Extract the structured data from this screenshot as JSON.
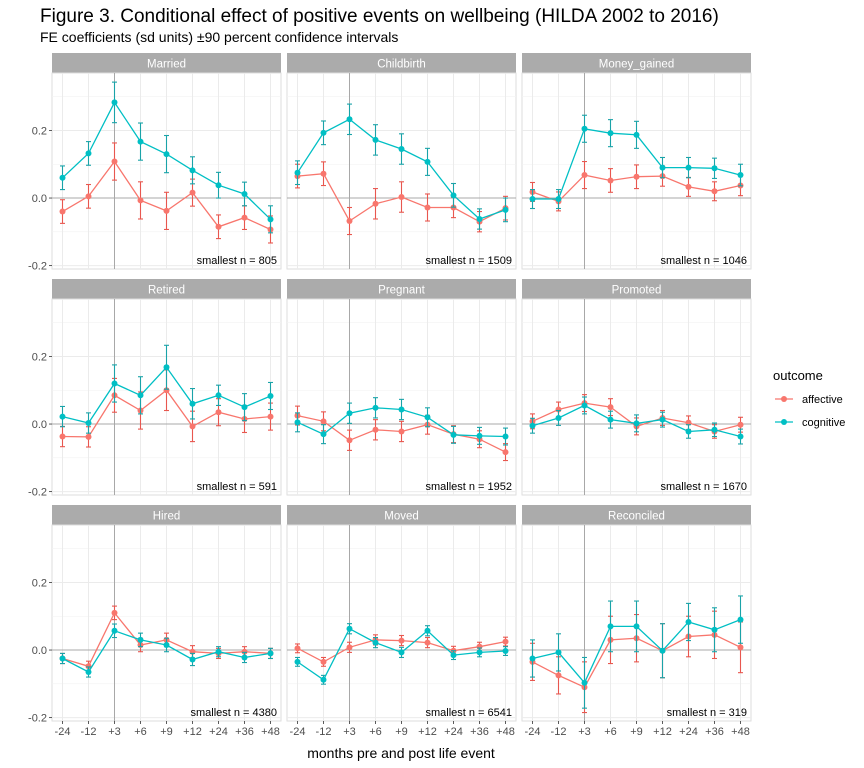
{
  "title": "Figure 3. Conditional effect of positive events on wellbeing (HILDA 2002 to 2016)",
  "subtitle": "FE coefficients (sd units) ±90 percent confidence intervals",
  "colors": {
    "affective": "#F8766D",
    "cognitive": "#00BFC4",
    "strip": "#ABABAB",
    "ci_affective": "#E8574F",
    "ci_cognitive": "#1AA3A8"
  },
  "chart_data": {
    "type": "line",
    "facets": "3x3 small multiples",
    "categories": [
      "-24",
      "-12",
      "+3",
      "+6",
      "+9",
      "+12",
      "+24",
      "+36",
      "+48"
    ],
    "event_marker": "+3",
    "xlabel": "months pre and post life event",
    "ylabel": "",
    "yticks": [
      -0.2,
      0.0,
      0.2
    ],
    "ytick_labels": [
      "-0.2",
      "0.0",
      "0.2"
    ],
    "ylim": [
      -0.21,
      0.37
    ],
    "grid": true,
    "legend": {
      "title": "outcome",
      "position": "right",
      "entries": [
        "affective",
        "cognitive"
      ]
    },
    "panels": [
      {
        "name": "Married",
        "n_label": "smallest n = 805",
        "series": [
          {
            "name": "affective",
            "values": [
              -0.04,
              0.005,
              0.108,
              -0.007,
              -0.038,
              0.016,
              -0.085,
              -0.058,
              -0.093
            ],
            "ci": [
              0.035,
              0.035,
              0.055,
              0.055,
              0.055,
              0.04,
              0.035,
              0.035,
              0.04
            ]
          },
          {
            "name": "cognitive",
            "values": [
              0.06,
              0.132,
              0.283,
              0.167,
              0.13,
              0.082,
              0.038,
              0.012,
              -0.063
            ],
            "ci": [
              0.035,
              0.035,
              0.06,
              0.055,
              0.055,
              0.04,
              0.038,
              0.035,
              0.04
            ]
          }
        ]
      },
      {
        "name": "Childbirth",
        "n_label": "smallest n = 1509",
        "series": [
          {
            "name": "affective",
            "values": [
              0.065,
              0.072,
              -0.068,
              -0.017,
              0.003,
              -0.028,
              -0.028,
              -0.07,
              -0.03
            ],
            "ci": [
              0.035,
              0.035,
              0.04,
              0.045,
              0.045,
              0.04,
              0.03,
              0.03,
              0.035
            ]
          },
          {
            "name": "cognitive",
            "values": [
              0.075,
              0.193,
              0.233,
              0.172,
              0.145,
              0.107,
              0.008,
              -0.062,
              -0.035
            ],
            "ci": [
              0.035,
              0.035,
              0.045,
              0.045,
              0.045,
              0.04,
              0.035,
              0.03,
              0.035
            ]
          }
        ]
      },
      {
        "name": "Money_gained",
        "n_label": "smallest n = 1046",
        "series": [
          {
            "name": "affective",
            "values": [
              0.018,
              -0.01,
              0.068,
              0.052,
              0.063,
              0.065,
              0.033,
              0.02,
              0.037
            ],
            "ci": [
              0.028,
              0.028,
              0.04,
              0.035,
              0.035,
              0.03,
              0.028,
              0.028,
              0.03
            ]
          },
          {
            "name": "cognitive",
            "values": [
              -0.003,
              -0.003,
              0.205,
              0.192,
              0.187,
              0.09,
              0.09,
              0.088,
              0.068
            ],
            "ci": [
              0.028,
              0.028,
              0.04,
              0.04,
              0.04,
              0.03,
              0.03,
              0.03,
              0.032
            ]
          }
        ]
      },
      {
        "name": "Retired",
        "n_label": "smallest n = 591",
        "series": [
          {
            "name": "affective",
            "values": [
              -0.037,
              -0.038,
              0.085,
              0.04,
              0.1,
              -0.007,
              0.035,
              0.015,
              0.022
            ],
            "ci": [
              0.03,
              0.03,
              0.05,
              0.055,
              0.06,
              0.045,
              0.04,
              0.04,
              0.04
            ]
          },
          {
            "name": "cognitive",
            "values": [
              0.022,
              0.003,
              0.12,
              0.085,
              0.168,
              0.06,
              0.085,
              0.05,
              0.083
            ],
            "ci": [
              0.03,
              0.03,
              0.055,
              0.055,
              0.065,
              0.045,
              0.03,
              0.04,
              0.04
            ]
          }
        ]
      },
      {
        "name": "Pregnant",
        "n_label": "smallest n = 1952",
        "series": [
          {
            "name": "affective",
            "values": [
              0.025,
              0.008,
              -0.048,
              -0.017,
              -0.022,
              -0.002,
              -0.03,
              -0.045,
              -0.083
            ],
            "ci": [
              0.028,
              0.028,
              0.03,
              0.03,
              0.03,
              0.028,
              0.025,
              0.025,
              0.025
            ]
          },
          {
            "name": "cognitive",
            "values": [
              0.005,
              -0.03,
              0.032,
              0.048,
              0.043,
              0.02,
              -0.032,
              -0.035,
              -0.037
            ],
            "ci": [
              0.028,
              0.028,
              0.03,
              0.03,
              0.03,
              0.028,
              0.025,
              0.025,
              0.025
            ]
          }
        ]
      },
      {
        "name": "Promoted",
        "n_label": "smallest n = 1670",
        "series": [
          {
            "name": "affective",
            "values": [
              0.008,
              0.043,
              0.062,
              0.05,
              -0.007,
              0.018,
              0.004,
              -0.022,
              -0.002
            ],
            "ci": [
              0.022,
              0.022,
              0.025,
              0.025,
              0.025,
              0.022,
              0.02,
              0.02,
              0.022
            ]
          },
          {
            "name": "cognitive",
            "values": [
              -0.005,
              0.018,
              0.055,
              0.013,
              0.002,
              0.013,
              -0.022,
              -0.017,
              -0.037
            ],
            "ci": [
              0.022,
              0.022,
              0.025,
              0.025,
              0.025,
              0.022,
              0.02,
              0.02,
              0.022
            ]
          }
        ]
      },
      {
        "name": "Hired",
        "n_label": "smallest n = 4380",
        "series": [
          {
            "name": "affective",
            "values": [
              -0.025,
              -0.048,
              0.11,
              0.015,
              0.03,
              -0.005,
              -0.01,
              -0.005,
              -0.01
            ],
            "ci": [
              0.015,
              0.015,
              0.02,
              0.02,
              0.02,
              0.018,
              0.015,
              0.015,
              0.015
            ]
          },
          {
            "name": "cognitive",
            "values": [
              -0.025,
              -0.065,
              0.057,
              0.03,
              0.015,
              -0.028,
              -0.005,
              -0.022,
              -0.01
            ],
            "ci": [
              0.015,
              0.015,
              0.02,
              0.02,
              0.02,
              0.018,
              0.015,
              0.015,
              0.015
            ]
          }
        ]
      },
      {
        "name": "Moved",
        "n_label": "smallest n = 6541",
        "series": [
          {
            "name": "affective",
            "values": [
              0.005,
              -0.035,
              0.008,
              0.03,
              0.028,
              0.022,
              -0.002,
              0.01,
              0.025
            ],
            "ci": [
              0.013,
              0.013,
              0.015,
              0.015,
              0.015,
              0.015,
              0.013,
              0.013,
              0.013
            ]
          },
          {
            "name": "cognitive",
            "values": [
              -0.035,
              -0.088,
              0.063,
              0.022,
              -0.007,
              0.057,
              -0.015,
              -0.007,
              -0.003
            ],
            "ci": [
              0.013,
              0.013,
              0.015,
              0.015,
              0.015,
              0.015,
              0.013,
              0.013,
              0.013
            ]
          }
        ]
      },
      {
        "name": "Reconciled",
        "n_label": "smallest n = 319",
        "series": [
          {
            "name": "affective",
            "values": [
              -0.035,
              -0.075,
              -0.11,
              0.03,
              0.035,
              -0.002,
              0.04,
              0.045,
              0.008
            ],
            "ci": [
              0.055,
              0.055,
              0.075,
              0.07,
              0.07,
              0.08,
              0.06,
              0.07,
              0.075
            ]
          },
          {
            "name": "cognitive",
            "values": [
              -0.025,
              -0.007,
              -0.097,
              0.07,
              0.07,
              -0.002,
              0.083,
              0.06,
              0.09
            ],
            "ci": [
              0.055,
              0.055,
              0.075,
              0.075,
              0.075,
              0.08,
              0.055,
              0.065,
              0.07
            ]
          }
        ]
      }
    ]
  }
}
